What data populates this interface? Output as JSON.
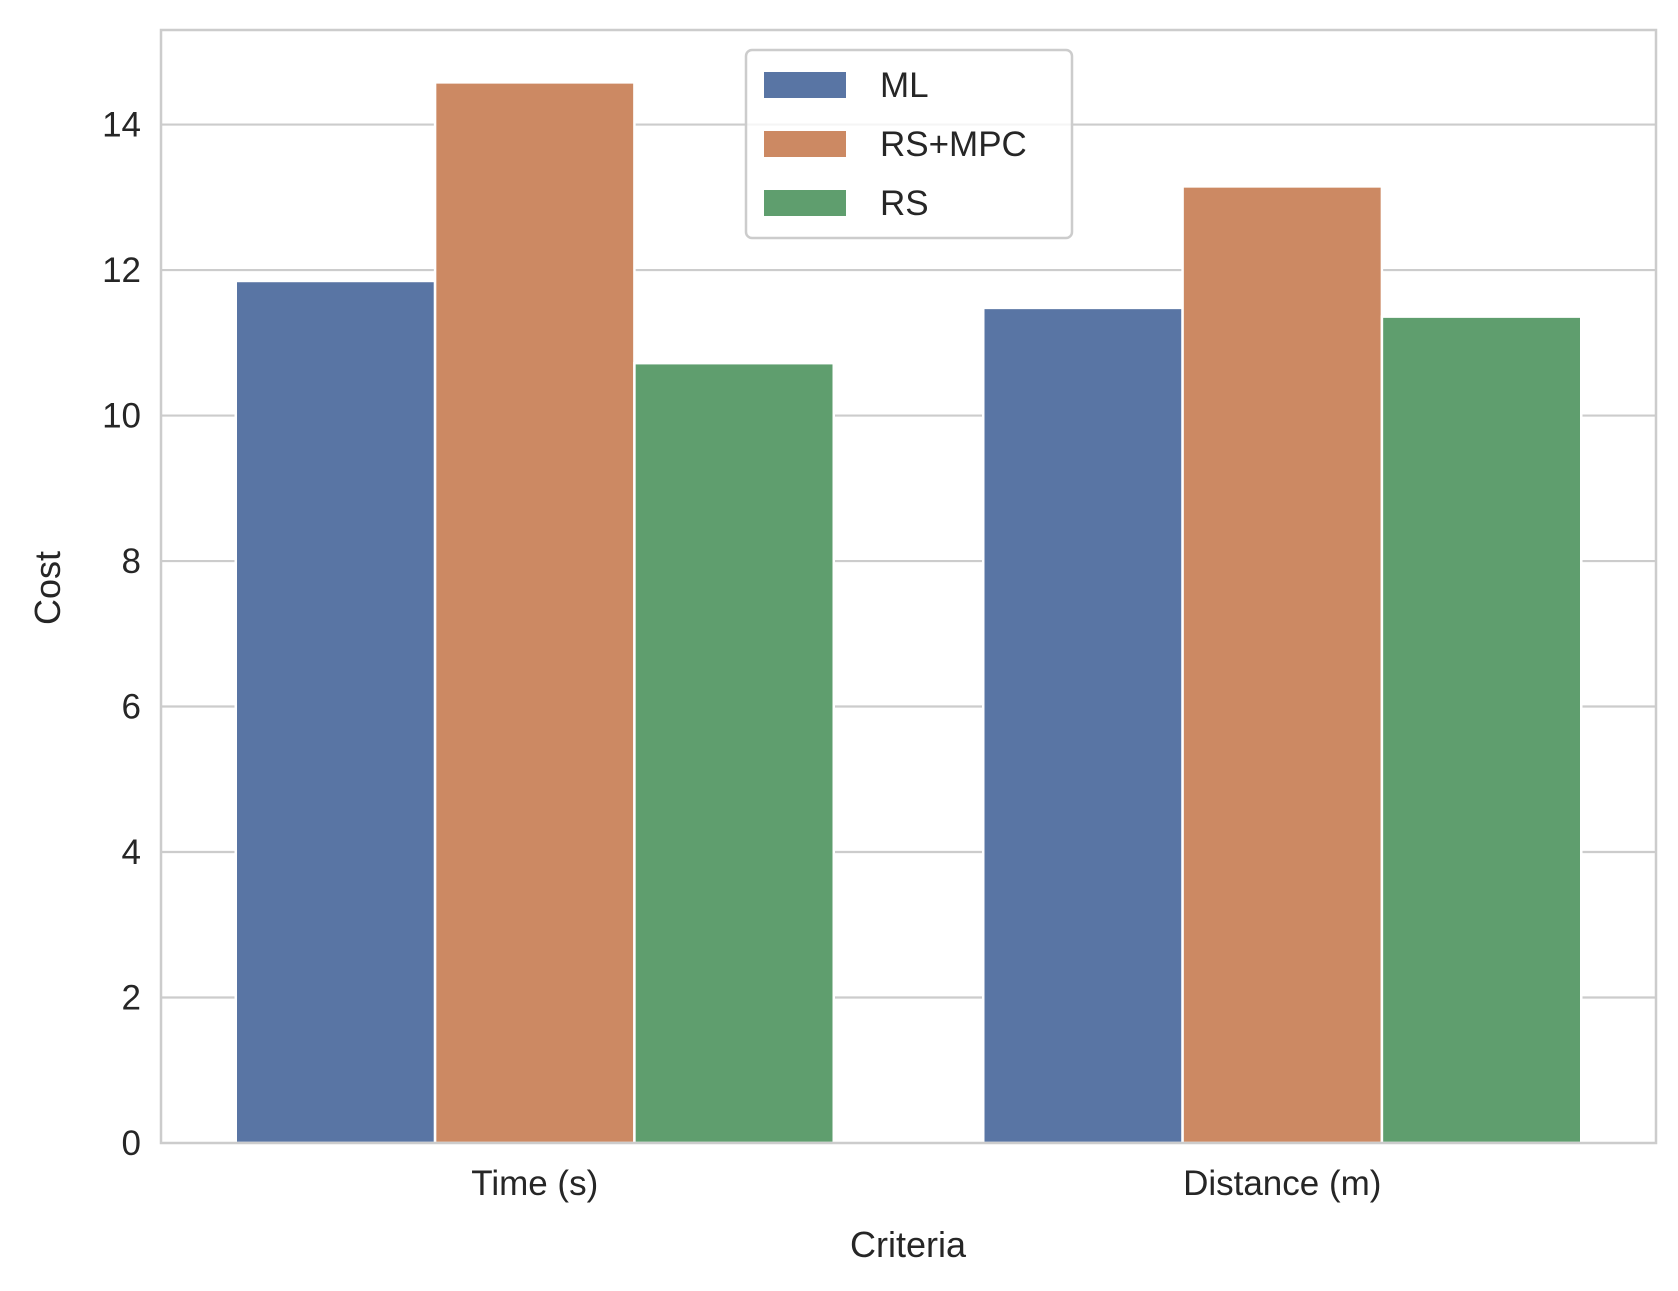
{
  "chart_data": {
    "type": "bar",
    "title": "",
    "xlabel": "Criteria",
    "ylabel": "Cost",
    "categories": [
      "Time (s)",
      "Distance (m)"
    ],
    "series": [
      {
        "name": "ML",
        "values": [
          11.85,
          11.48
        ],
        "color": "#5975a4"
      },
      {
        "name": "RS+MPC",
        "values": [
          14.58,
          13.15
        ],
        "color": "#cc8963"
      },
      {
        "name": "RS",
        "values": [
          10.72,
          11.36
        ],
        "color": "#5f9e6e"
      }
    ],
    "ylim": [
      0,
      15.3
    ],
    "yticks": [
      0,
      2,
      4,
      6,
      8,
      10,
      12,
      14
    ],
    "grid": "horizontal",
    "legend_position": "top-center"
  }
}
